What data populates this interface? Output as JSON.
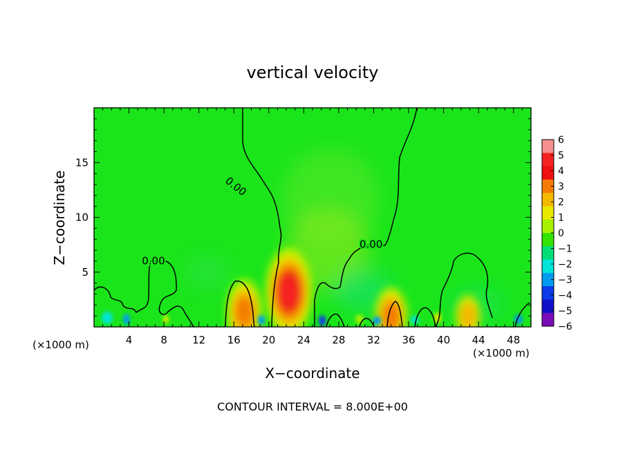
{
  "chart_data": {
    "type": "heatmap",
    "title": "vertical velocity",
    "xlabel": "X−coordinate",
    "ylabel": "Z−coordinate",
    "x_unit_left": "(×1000 m)",
    "x_unit_right": "(×1000 m)",
    "xlim": [
      0,
      50
    ],
    "ylim": [
      0,
      20
    ],
    "x_ticks": [
      4,
      8,
      12,
      16,
      20,
      24,
      28,
      32,
      36,
      40,
      44,
      48
    ],
    "y_ticks": [
      5,
      10,
      15
    ],
    "colorbar": {
      "levels": [
        6,
        5,
        4,
        3,
        2,
        1,
        0,
        -1,
        -2,
        -3,
        -4,
        -5,
        -6
      ],
      "labels": [
        "6",
        "5",
        "4",
        "3",
        "2",
        "1",
        "0",
        "−1",
        "−2",
        "−3",
        "−4",
        "−5",
        "−6"
      ],
      "colors": [
        "#f78f8f",
        "#f52222",
        "#ee1010",
        "#f47c06",
        "#f3b800",
        "#e8e800",
        "#a6f100",
        "#33e300",
        "#00df77",
        "#00e5d9",
        "#009bef",
        "#0c3ae8",
        "#1010c8",
        "#7a0cb8"
      ]
    },
    "background_color": "#1ae51a",
    "contour_label": "0.00",
    "contour_labels": [
      {
        "text": "0.00",
        "x": 16.2,
        "y": 12.8
      },
      {
        "text": "0.00",
        "x": 31.7,
        "y": 7.5
      },
      {
        "text": "0.00",
        "x": 6.8,
        "y": 6.0
      }
    ],
    "updraft_cores": [
      {
        "x": 22.3,
        "z": 3.2,
        "w": 4.5
      },
      {
        "x": 17.2,
        "z": 1.4,
        "w": 3.0
      },
      {
        "x": 34.0,
        "z": 1.0,
        "w": 2.5
      },
      {
        "x": 42.8,
        "z": 1.0,
        "w": 1.5
      }
    ],
    "footer": "CONTOUR INTERVAL = 8.000E+00"
  }
}
